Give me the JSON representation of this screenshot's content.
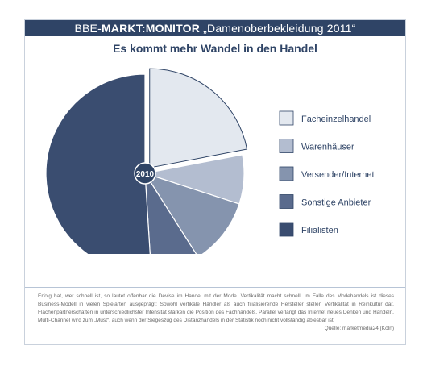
{
  "header": {
    "brand_prefix": "BBE-",
    "brand_bold": "MARKT:MONITOR",
    "subtitle": "„Damenoberbekleidung 2011“"
  },
  "title": "Es kommt mehr Wandel in den Handel",
  "chart_data": {
    "type": "pie",
    "center_label": "2010",
    "legend_position": "right",
    "slices": [
      {
        "label": "Facheinzelhandel",
        "value": 22,
        "color": "#e3e8ef",
        "exploded": true
      },
      {
        "label": "Warenhäuser",
        "value": 8,
        "color": "#b3bdd0",
        "exploded": false
      },
      {
        "label": "Versender/Internet",
        "value": 11,
        "color": "#8594ae",
        "exploded": false
      },
      {
        "label": "Sonstige Anbieter",
        "value": 8,
        "color": "#5a6b8d",
        "exploded": false
      },
      {
        "label": "Filialisten",
        "value": 51,
        "color": "#3a4d70",
        "exploded": false
      }
    ]
  },
  "footer": {
    "text": "Erfolg hat, wer schnell ist, so lautet offenbar die Devise im Handel mit der Mode. Vertikalität macht schnell. Im Falle des Modehandels ist dieses Business-Modell in vielen Spielarten ausgeprägt: Sowohl vertikale Händler als auch filialisierende Hersteller stellen Vertikalität in Reinkultur dar. Flächenpartnerschaften in unterschiedlichster Intensität stärken die Position des Fachhandels. Parallel verlangt das Internet neues Denken und Handeln. Multi-Channel wird zum „Must“, auch wenn der Siegeszug des Distanzhandels in der Statistik noch nicht vollständig ablesbar ist.",
    "source": "Quelle: marketmedia24 (Köln)"
  }
}
